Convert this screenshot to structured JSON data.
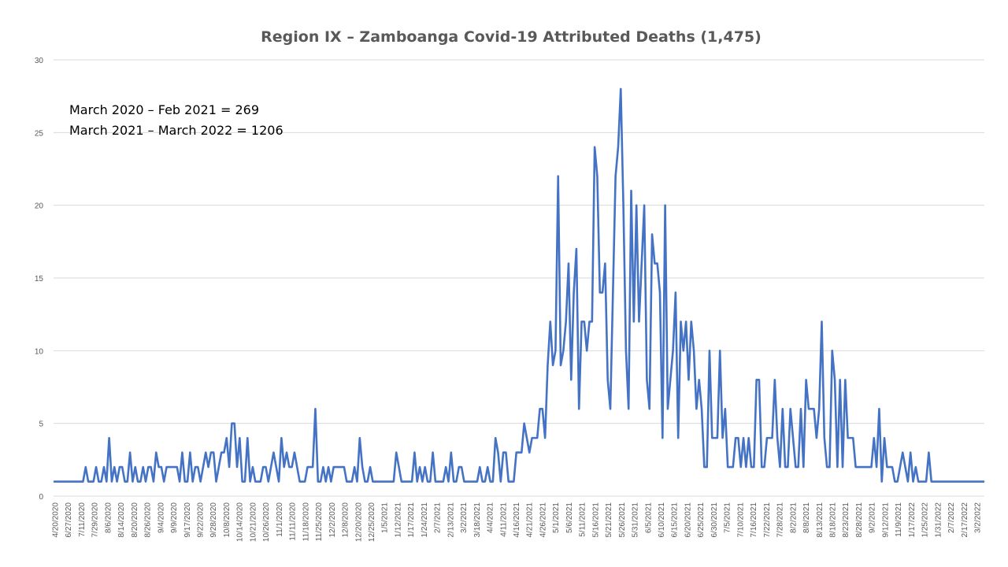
{
  "chart_data": {
    "type": "line",
    "title": "Region IX – Zamboanga Covid-19 Attributed Deaths (1,475)",
    "xlabel": "",
    "ylabel": "",
    "ylim": [
      0,
      30
    ],
    "yticks": [
      0,
      5,
      10,
      15,
      20,
      25,
      30
    ],
    "grid": true,
    "legend": "none",
    "line_color": "#4472c4",
    "annotations": [
      "March 2020 – Feb 2021 = 269",
      "March 2021 – March 2022 =  1206"
    ],
    "xtick_labels": [
      "4/20/2020",
      "6/27/2020",
      "7/11/2020",
      "7/29/2020",
      "8/6/2020",
      "8/14/2020",
      "8/20/2020",
      "8/26/2020",
      "9/4/2020",
      "9/9/2020",
      "9/17/2020",
      "9/22/2020",
      "9/28/2020",
      "10/8/2020",
      "10/14/2020",
      "10/21/2020",
      "10/26/2020",
      "11/1/2020",
      "11/11/2020",
      "11/18/2020",
      "11/25/2020",
      "12/2/2020",
      "12/8/2020",
      "12/20/2020",
      "12/25/2020",
      "1/5/2021",
      "1/12/2021",
      "1/17/2021",
      "1/24/2021",
      "2/7/2021",
      "2/13/2021",
      "3/2/2021",
      "3/18/2021",
      "4/4/2021",
      "4/11/2021",
      "4/16/2021",
      "4/21/2021",
      "4/26/2021",
      "5/1/2021",
      "5/6/2021",
      "5/11/2021",
      "5/16/2021",
      "5/21/2021",
      "5/26/2021",
      "5/31/2021",
      "6/5/2021",
      "6/10/2021",
      "6/15/2021",
      "6/20/2021",
      "6/25/2021",
      "6/30/2021",
      "7/5/2021",
      "7/10/2021",
      "7/16/2021",
      "7/22/2021",
      "7/28/2021",
      "8/2/2021",
      "8/8/2021",
      "8/13/2021",
      "8/18/2021",
      "8/23/2021",
      "8/28/2021",
      "9/2/2021",
      "9/12/2021",
      "11/9/2021",
      "1/17/2022",
      "1/25/2022",
      "1/31/2022",
      "2/7/2022",
      "2/17/2022",
      "3/2/2022"
    ],
    "series": [
      {
        "values": [
          1,
          1,
          1,
          1,
          1,
          1,
          1,
          1,
          1,
          1,
          1,
          1,
          2,
          1,
          1,
          1,
          2,
          1,
          1,
          2,
          1,
          4,
          1,
          2,
          1,
          2,
          2,
          1,
          1,
          3,
          1,
          2,
          1,
          1,
          2,
          1,
          2,
          2,
          1,
          3,
          2,
          2,
          1,
          2,
          2,
          2,
          2,
          2,
          1,
          3,
          1,
          1,
          3,
          1,
          2,
          2,
          1,
          2,
          3,
          2,
          3,
          3,
          1,
          2,
          3,
          3,
          4,
          2,
          5,
          5,
          2,
          4,
          1,
          1,
          4,
          1,
          2,
          1,
          1,
          1,
          2,
          2,
          1,
          2,
          3,
          2,
          1,
          4,
          2,
          3,
          2,
          2,
          3,
          2,
          1,
          1,
          1,
          2,
          2,
          2,
          6,
          1,
          1,
          2,
          1,
          2,
          1,
          2,
          2,
          2,
          2,
          2,
          1,
          1,
          1,
          2,
          1,
          4,
          2,
          1,
          1,
          2,
          1,
          1,
          1,
          1,
          1,
          1,
          1,
          1,
          1,
          3,
          2,
          1,
          1,
          1,
          1,
          1,
          3,
          1,
          2,
          1,
          2,
          1,
          1,
          3,
          1,
          1,
          1,
          1,
          2,
          1,
          3,
          1,
          1,
          2,
          2,
          1,
          1,
          1,
          1,
          1,
          1,
          2,
          1,
          1,
          2,
          1,
          1,
          4,
          3,
          1,
          3,
          3,
          1,
          1,
          1,
          3,
          3,
          3,
          5,
          4,
          3,
          4,
          4,
          4,
          6,
          6,
          4,
          9,
          12,
          9,
          10,
          22,
          9,
          10,
          12,
          16,
          8,
          14,
          17,
          6,
          12,
          12,
          10,
          12,
          12,
          24,
          22,
          14,
          14,
          16,
          8,
          6,
          14,
          22,
          24,
          28,
          20,
          10,
          6,
          21,
          12,
          20,
          12,
          16,
          20,
          8,
          6,
          18,
          16,
          16,
          14,
          4,
          20,
          6,
          8,
          10,
          14,
          4,
          12,
          10,
          12,
          8,
          12,
          10,
          6,
          8,
          6,
          2,
          2,
          10,
          4,
          4,
          4,
          10,
          4,
          6,
          2,
          2,
          2,
          4,
          4,
          2,
          4,
          2,
          4,
          2,
          2,
          8,
          8,
          2,
          2,
          4,
          4,
          4,
          8,
          4,
          2,
          6,
          2,
          2,
          6,
          4,
          2,
          2,
          6,
          2,
          8,
          6,
          6,
          6,
          4,
          6,
          12,
          4,
          2,
          2,
          10,
          8,
          2,
          8,
          2,
          8,
          4,
          4,
          4,
          2,
          2,
          2,
          2,
          2,
          2,
          2,
          4,
          2,
          6,
          1,
          4,
          2,
          2,
          2,
          1,
          1,
          2,
          3,
          2,
          1,
          3,
          1,
          2,
          1,
          1,
          1,
          1,
          3,
          1,
          1,
          1,
          1,
          1,
          1,
          1,
          1,
          1,
          1,
          1,
          1,
          1,
          1,
          1,
          1,
          1,
          1,
          1,
          1,
          1
        ]
      }
    ]
  }
}
